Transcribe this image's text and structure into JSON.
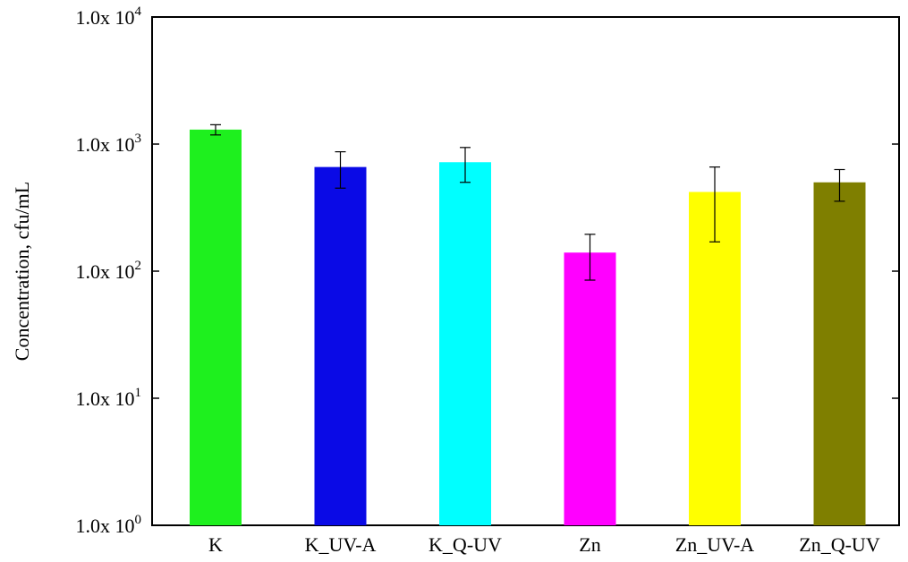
{
  "chart_data": {
    "type": "bar",
    "ylabel": "Concentration, cfu/mL",
    "xlabel": "",
    "yscale": "log",
    "ylim": [
      1,
      10000
    ],
    "yticks": [
      {
        "value": 1,
        "mantissa": "1.0x 10",
        "exp": "0"
      },
      {
        "value": 10,
        "mantissa": "1.0x 10",
        "exp": "1"
      },
      {
        "value": 100,
        "mantissa": "1.0x 10",
        "exp": "2"
      },
      {
        "value": 1000,
        "mantissa": "1.0x 10",
        "exp": "3"
      },
      {
        "value": 10000,
        "mantissa": "1.0x 10",
        "exp": "4"
      }
    ],
    "categories": [
      "K",
      "K_UV-A",
      "K_Q-UV",
      "Zn",
      "Zn_UV-A",
      "Zn_Q-UV"
    ],
    "values": [
      1300,
      660,
      720,
      140,
      420,
      500
    ],
    "error_low": [
      1180,
      450,
      500,
      85,
      170,
      355
    ],
    "error_high": [
      1420,
      870,
      940,
      195,
      660,
      630
    ],
    "colors": [
      "#1ef01e",
      "#0a0ae6",
      "#00ffff",
      "#ff00ff",
      "#ffff00",
      "#7f7f00"
    ],
    "grid": false,
    "legend": "none"
  }
}
